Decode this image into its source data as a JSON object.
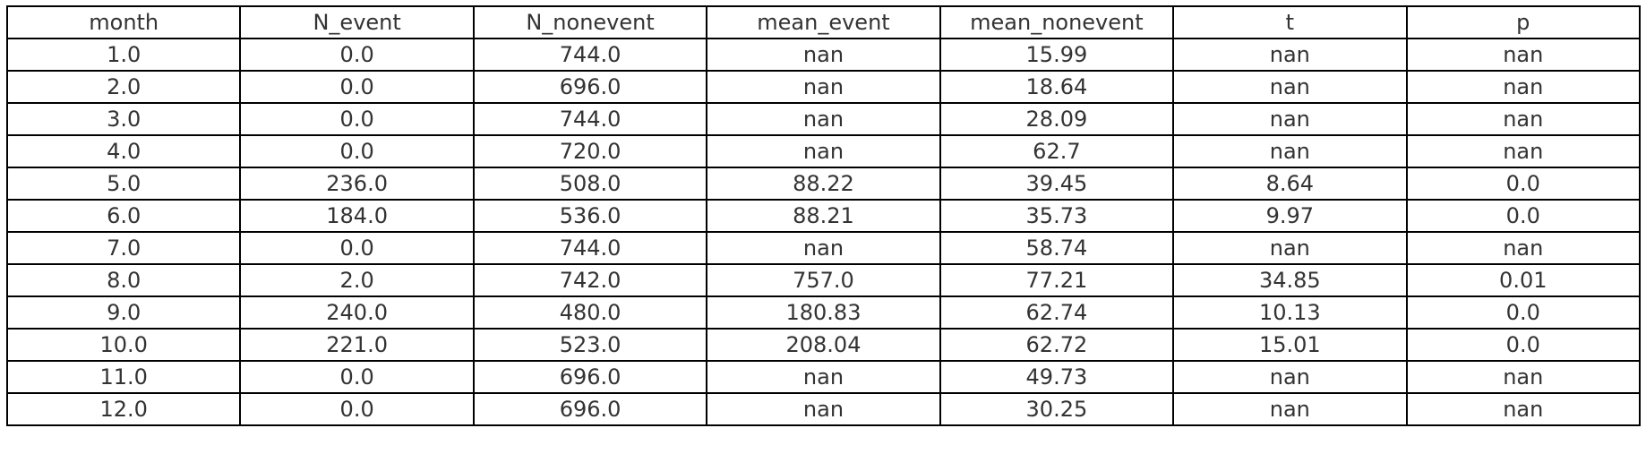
{
  "chart_data": {
    "type": "table",
    "columns": [
      "month",
      "N_event",
      "N_nonevent",
      "mean_event",
      "mean_nonevent",
      "t",
      "p"
    ],
    "rows": [
      [
        "1.0",
        "0.0",
        "744.0",
        "nan",
        "15.99",
        "nan",
        "nan"
      ],
      [
        "2.0",
        "0.0",
        "696.0",
        "nan",
        "18.64",
        "nan",
        "nan"
      ],
      [
        "3.0",
        "0.0",
        "744.0",
        "nan",
        "28.09",
        "nan",
        "nan"
      ],
      [
        "4.0",
        "0.0",
        "720.0",
        "nan",
        "62.7",
        "nan",
        "nan"
      ],
      [
        "5.0",
        "236.0",
        "508.0",
        "88.22",
        "39.45",
        "8.64",
        "0.0"
      ],
      [
        "6.0",
        "184.0",
        "536.0",
        "88.21",
        "35.73",
        "9.97",
        "0.0"
      ],
      [
        "7.0",
        "0.0",
        "744.0",
        "nan",
        "58.74",
        "nan",
        "nan"
      ],
      [
        "8.0",
        "2.0",
        "742.0",
        "757.0",
        "77.21",
        "34.85",
        "0.01"
      ],
      [
        "9.0",
        "240.0",
        "480.0",
        "180.83",
        "62.74",
        "10.13",
        "0.0"
      ],
      [
        "10.0",
        "221.0",
        "523.0",
        "208.04",
        "62.72",
        "15.01",
        "0.0"
      ],
      [
        "11.0",
        "0.0",
        "696.0",
        "nan",
        "49.73",
        "nan",
        "nan"
      ],
      [
        "12.0",
        "0.0",
        "696.0",
        "nan",
        "30.25",
        "nan",
        "nan"
      ]
    ],
    "colors": {
      "text": "#333333",
      "border": "#000000",
      "background": "#ffffff"
    }
  }
}
